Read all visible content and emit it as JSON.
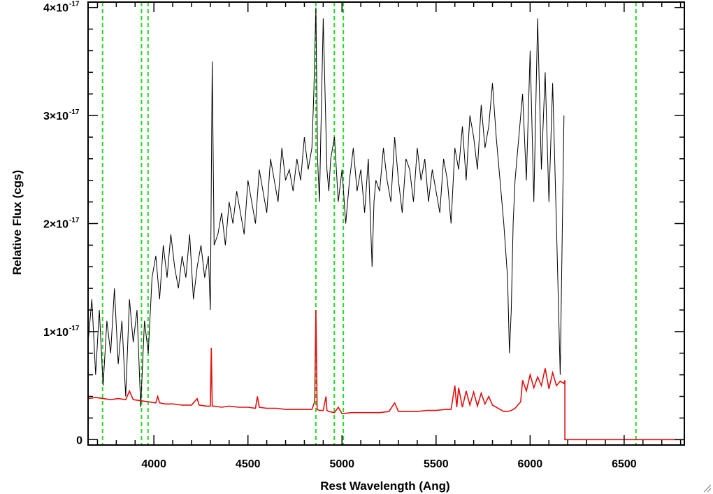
{
  "chart_data": {
    "type": "line",
    "xlabel": "Rest Wavelength (Ang)",
    "ylabel": "Relative Flux (cgs)",
    "xlim": [
      3650,
      6820
    ],
    "ylim": [
      -0.05,
      4.05
    ],
    "y_unit_exponent": "-17",
    "x_ticks": [
      {
        "value": 4000,
        "label": "4000"
      },
      {
        "value": 4500,
        "label": "4500"
      },
      {
        "value": 5000,
        "label": "5000"
      },
      {
        "value": 5500,
        "label": "5500"
      },
      {
        "value": 6000,
        "label": "6000"
      },
      {
        "value": 6500,
        "label": "6500"
      }
    ],
    "y_ticks": [
      {
        "value": 0,
        "label": "0",
        "exp": ""
      },
      {
        "value": 1,
        "label": "1×10",
        "exp": "-17"
      },
      {
        "value": 2,
        "label": "2×10",
        "exp": "-17"
      },
      {
        "value": 3,
        "label": "3×10",
        "exp": "-17"
      },
      {
        "value": 4,
        "label": "4×10",
        "exp": "-17"
      }
    ],
    "colors": {
      "spectrum": "#000000",
      "model": "#e01010",
      "lines": "#22dd22"
    },
    "series": [
      {
        "key": "spectrum",
        "color": "#000000",
        "x": [
          3650,
          3670,
          3690,
          3710,
          3730,
          3750,
          3770,
          3790,
          3810,
          3830,
          3850,
          3870,
          3890,
          3910,
          3930,
          3950,
          3970,
          3990,
          4010,
          4030,
          4050,
          4070,
          4090,
          4110,
          4130,
          4150,
          4170,
          4190,
          4210,
          4230,
          4250,
          4270,
          4290,
          4300,
          4310,
          4320,
          4340,
          4360,
          4380,
          4400,
          4420,
          4440,
          4460,
          4480,
          4500,
          4520,
          4540,
          4560,
          4580,
          4600,
          4620,
          4640,
          4660,
          4680,
          4700,
          4720,
          4740,
          4760,
          4780,
          4800,
          4820,
          4840,
          4850,
          4861,
          4870,
          4880,
          4900,
          4920,
          4930,
          4940,
          4960,
          4980,
          5000,
          5020,
          5040,
          5060,
          5080,
          5100,
          5120,
          5140,
          5160,
          5170,
          5180,
          5200,
          5220,
          5240,
          5260,
          5280,
          5300,
          5320,
          5340,
          5360,
          5380,
          5400,
          5420,
          5440,
          5460,
          5480,
          5500,
          5520,
          5540,
          5560,
          5580,
          5600,
          5620,
          5640,
          5660,
          5680,
          5700,
          5720,
          5740,
          5760,
          5780,
          5800,
          5820,
          5840,
          5860,
          5880,
          5890,
          5900,
          5910,
          5920,
          5940,
          5960,
          5980,
          6000,
          6020,
          6040,
          6060,
          6080,
          6100,
          6120,
          6140,
          6160,
          6180
        ],
        "y": [
          0.9,
          1.3,
          0.6,
          1.2,
          0.5,
          1.1,
          0.8,
          1.4,
          0.7,
          1.1,
          0.4,
          1.3,
          0.9,
          1.2,
          0.3,
          1.1,
          0.8,
          1.5,
          1.7,
          1.3,
          1.8,
          1.5,
          1.9,
          1.6,
          1.4,
          1.7,
          1.5,
          1.9,
          1.3,
          1.6,
          1.8,
          1.5,
          1.7,
          1.2,
          3.5,
          1.8,
          1.9,
          2.1,
          1.8,
          2.2,
          2.0,
          2.3,
          2.1,
          1.9,
          2.4,
          2.2,
          2.0,
          2.5,
          2.3,
          2.1,
          2.6,
          2.4,
          2.2,
          2.7,
          2.4,
          2.5,
          2.3,
          2.6,
          2.4,
          2.8,
          2.5,
          2.7,
          3.2,
          4.0,
          2.6,
          2.2,
          3.9,
          2.5,
          2.3,
          2.6,
          2.8,
          2.2,
          2.5,
          2.0,
          2.4,
          2.7,
          2.3,
          2.5,
          2.1,
          2.6,
          1.6,
          2.2,
          2.4,
          2.3,
          2.7,
          2.4,
          2.2,
          2.8,
          2.4,
          2.1,
          2.6,
          2.5,
          2.2,
          2.7,
          2.4,
          2.6,
          2.2,
          2.5,
          2.3,
          2.1,
          2.6,
          2.4,
          2.0,
          2.7,
          2.5,
          2.9,
          2.4,
          3.0,
          2.8,
          2.5,
          3.1,
          2.7,
          2.9,
          3.3,
          2.8,
          2.4,
          2.0,
          1.5,
          0.8,
          1.2,
          2.0,
          2.4,
          2.8,
          3.2,
          2.4,
          3.6,
          2.2,
          3.9,
          2.5,
          3.4,
          2.2,
          3.3,
          2.0,
          0.6,
          3.0
        ]
      },
      {
        "key": "model",
        "color": "#e01010",
        "x": [
          3650,
          3690,
          3730,
          3770,
          3810,
          3850,
          3870,
          3890,
          3930,
          3970,
          4010,
          4020,
          4030,
          4060,
          4100,
          4150,
          4200,
          4230,
          4240,
          4280,
          4300,
          4305,
          4310,
          4320,
          4360,
          4400,
          4450,
          4500,
          4540,
          4550,
          4560,
          4600,
          4650,
          4700,
          4750,
          4800,
          4840,
          4855,
          4861,
          4868,
          4880,
          4900,
          4915,
          4920,
          4930,
          4960,
          4980,
          5000,
          5050,
          5100,
          5150,
          5200,
          5250,
          5280,
          5300,
          5350,
          5400,
          5450,
          5500,
          5550,
          5580,
          5600,
          5610,
          5620,
          5640,
          5660,
          5680,
          5700,
          5720,
          5740,
          5760,
          5780,
          5800,
          5820,
          5840,
          5860,
          5880,
          5900,
          5920,
          5940,
          5950,
          5960,
          5980,
          6000,
          6020,
          6040,
          6060,
          6080,
          6100,
          6120,
          6140,
          6160,
          6180,
          6185,
          6185,
          6820
        ],
        "y": [
          0.38,
          0.39,
          0.38,
          0.37,
          0.38,
          0.37,
          0.45,
          0.37,
          0.36,
          0.35,
          0.34,
          0.4,
          0.34,
          0.33,
          0.33,
          0.32,
          0.32,
          0.38,
          0.32,
          0.31,
          0.31,
          0.85,
          0.31,
          0.31,
          0.3,
          0.31,
          0.3,
          0.3,
          0.29,
          0.4,
          0.3,
          0.29,
          0.29,
          0.28,
          0.28,
          0.28,
          0.28,
          0.35,
          1.2,
          0.28,
          0.27,
          0.27,
          0.4,
          0.27,
          0.26,
          0.25,
          0.3,
          0.24,
          0.25,
          0.25,
          0.25,
          0.25,
          0.26,
          0.34,
          0.26,
          0.26,
          0.26,
          0.27,
          0.27,
          0.28,
          0.28,
          0.5,
          0.3,
          0.48,
          0.3,
          0.45,
          0.32,
          0.44,
          0.31,
          0.43,
          0.33,
          0.4,
          0.32,
          0.3,
          0.28,
          0.26,
          0.26,
          0.27,
          0.29,
          0.33,
          0.35,
          0.55,
          0.45,
          0.6,
          0.48,
          0.58,
          0.5,
          0.66,
          0.47,
          0.62,
          0.5,
          0.54,
          0.52,
          0.55,
          0.0,
          0.0
        ]
      }
    ],
    "vertical_lines": [
      {
        "x": 3727,
        "style": "dashed",
        "color": "#22dd22"
      },
      {
        "x": 3934,
        "style": "dashed",
        "color": "#22dd22"
      },
      {
        "x": 3969,
        "style": "dashed",
        "color": "#22dd22"
      },
      {
        "x": 4861,
        "style": "dashed",
        "color": "#22dd22"
      },
      {
        "x": 4959,
        "style": "dashed",
        "color": "#22dd22"
      },
      {
        "x": 5007,
        "style": "dashed",
        "color": "#22dd22"
      },
      {
        "x": 6563,
        "style": "dashed",
        "color": "#22dd22"
      }
    ]
  }
}
